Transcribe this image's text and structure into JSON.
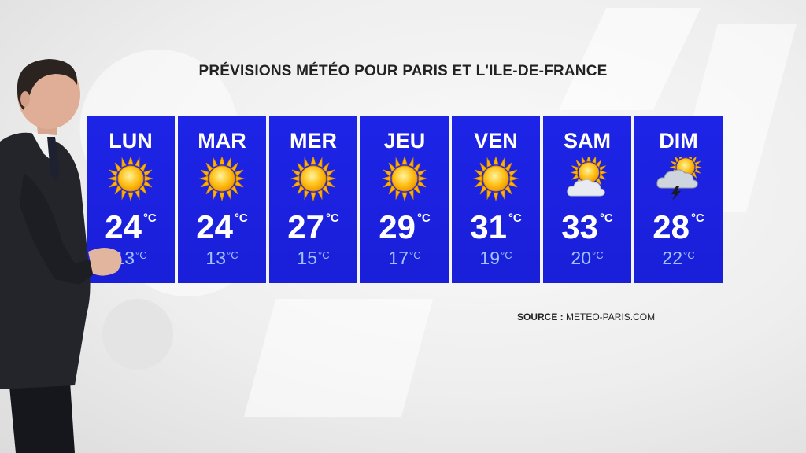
{
  "title": "PRÉVISIONS MÉTÉO POUR PARIS ET L'ILE-DE-FRANCE",
  "unit": "°C",
  "days": [
    {
      "name": "LUN",
      "icon": "sun-icon",
      "max": "24",
      "min": "13"
    },
    {
      "name": "MAR",
      "icon": "sun-icon",
      "max": "24",
      "min": "13"
    },
    {
      "name": "MER",
      "icon": "sun-icon",
      "max": "27",
      "min": "15"
    },
    {
      "name": "JEU",
      "icon": "sun-icon",
      "max": "29",
      "min": "17"
    },
    {
      "name": "VEN",
      "icon": "sun-icon",
      "max": "31",
      "min": "19"
    },
    {
      "name": "SAM",
      "icon": "partly-cloudy-icon",
      "max": "33",
      "min": "20"
    },
    {
      "name": "DIM",
      "icon": "thunderstorm-icon",
      "max": "28",
      "min": "22"
    }
  ],
  "source": {
    "label": "SOURCE :",
    "value": "METEO-PARIS.COM"
  },
  "colors": {
    "panel": "#1d24e6",
    "min_temp": "#9ec3ff",
    "sun": "#ffc21a"
  }
}
